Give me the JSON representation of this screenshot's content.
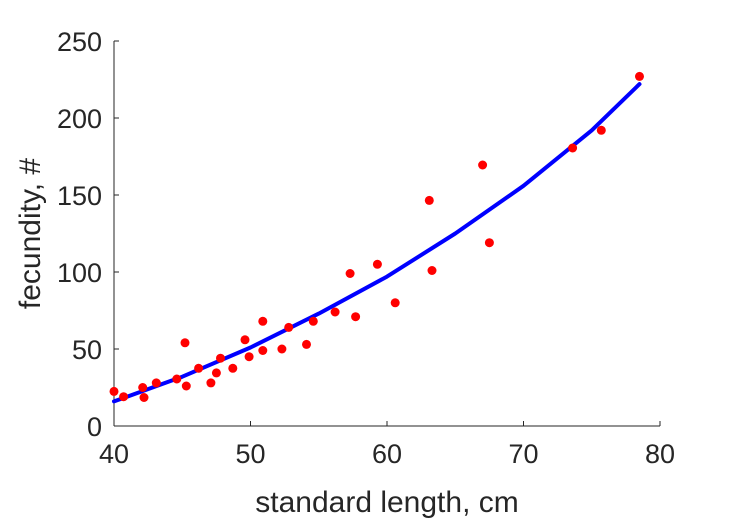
{
  "chart_data": {
    "type": "scatter",
    "xlabel": "standard length, cm",
    "ylabel": "fecundity, #",
    "xlim": [
      40,
      80
    ],
    "ylim": [
      0,
      250
    ],
    "xticks": [
      "40",
      "50",
      "60",
      "70",
      "80"
    ],
    "yticks": [
      "0",
      "50",
      "100",
      "150",
      "200",
      "250"
    ],
    "grid": false,
    "legend": "none",
    "series": [
      {
        "kind": "scatter",
        "color": "#ff0000",
        "points": [
          [
            40.0,
            22.5
          ],
          [
            40.7,
            19.0
          ],
          [
            42.1,
            25.0
          ],
          [
            42.2,
            18.5
          ],
          [
            43.1,
            28.0
          ],
          [
            44.6,
            30.5
          ],
          [
            45.2,
            54.0
          ],
          [
            45.3,
            26.0
          ],
          [
            46.2,
            37.5
          ],
          [
            47.1,
            28.0
          ],
          [
            47.5,
            34.5
          ],
          [
            47.8,
            44.0
          ],
          [
            48.7,
            37.5
          ],
          [
            49.6,
            56.0
          ],
          [
            49.9,
            45.0
          ],
          [
            50.9,
            49.0
          ],
          [
            50.9,
            68.0
          ],
          [
            52.3,
            50.0
          ],
          [
            52.8,
            64.0
          ],
          [
            54.1,
            53.0
          ],
          [
            54.6,
            68.0
          ],
          [
            56.2,
            74.0
          ],
          [
            57.3,
            99.0
          ],
          [
            57.7,
            71.0
          ],
          [
            59.3,
            105.0
          ],
          [
            60.6,
            80.0
          ],
          [
            63.1,
            146.5
          ],
          [
            63.3,
            101.0
          ],
          [
            67.0,
            169.5
          ],
          [
            67.5,
            119.0
          ],
          [
            73.6,
            180.5
          ],
          [
            75.7,
            192.0
          ],
          [
            78.5,
            227.0
          ]
        ]
      },
      {
        "kind": "line",
        "color": "#0000ff",
        "x": [
          40.0,
          45.0,
          50.0,
          55.0,
          60.0,
          65.0,
          70.0,
          75.0,
          78.5
        ],
        "y": [
          16.0,
          32.0,
          51.0,
          73.0,
          97.0,
          125.0,
          156.0,
          192.0,
          222.0
        ]
      }
    ]
  }
}
